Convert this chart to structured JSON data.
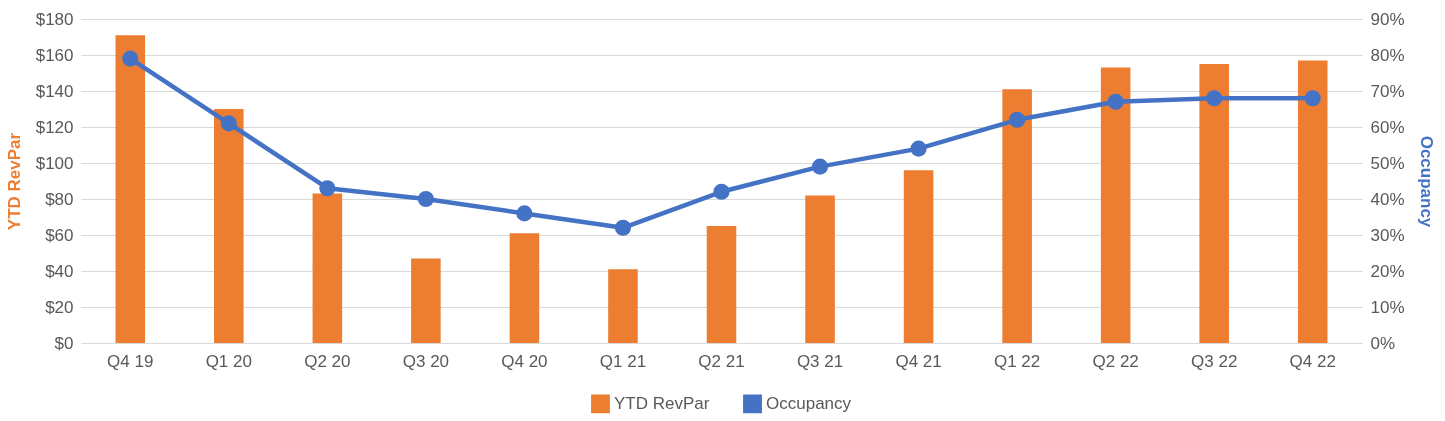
{
  "chart_data": {
    "type": "bar",
    "ylabel": "YTD RevPar",
    "y2label": "Occupancy",
    "categories": [
      "Q4 19",
      "Q1 20",
      "Q2 20",
      "Q3 20",
      "Q4 20",
      "Q1 21",
      "Q2 21",
      "Q3 21",
      "Q4 21",
      "Q1 22",
      "Q2 22",
      "Q3 22",
      "Q4 22"
    ],
    "series": [
      {
        "name": "YTD RevPar",
        "color": "#ed7d31",
        "values": [
          171,
          130,
          83,
          47,
          61,
          41,
          65,
          82,
          96,
          141,
          153,
          155,
          157
        ]
      },
      {
        "name": "Occupancy",
        "type": "line",
        "axis": "y2",
        "color": "#4472c4",
        "marker": "circle",
        "values": [
          79,
          61,
          43,
          40,
          36,
          32,
          42,
          49,
          54,
          62,
          67,
          68,
          68
        ]
      }
    ],
    "ylim": [
      0,
      180
    ],
    "yticks": [
      {
        "value": 0,
        "label": "$0"
      },
      {
        "value": 20,
        "label": "$20"
      },
      {
        "value": 40,
        "label": "$40"
      },
      {
        "value": 60,
        "label": "$60"
      },
      {
        "value": 80,
        "label": "$80"
      },
      {
        "value": 100,
        "label": "$100"
      },
      {
        "value": 120,
        "label": "$120"
      },
      {
        "value": 140,
        "label": "$140"
      },
      {
        "value": 160,
        "label": "$160"
      },
      {
        "value": 180,
        "label": "$180"
      }
    ],
    "y2lim": [
      0,
      90
    ],
    "y2ticks": [
      {
        "value": 0,
        "label": "0%"
      },
      {
        "value": 10,
        "label": "10%"
      },
      {
        "value": 20,
        "label": "20%"
      },
      {
        "value": 30,
        "label": "30%"
      },
      {
        "value": 40,
        "label": "40%"
      },
      {
        "value": 50,
        "label": "50%"
      },
      {
        "value": 60,
        "label": "60%"
      },
      {
        "value": 70,
        "label": "70%"
      },
      {
        "value": 80,
        "label": "80%"
      },
      {
        "value": 90,
        "label": "90%"
      }
    ],
    "grid": "y",
    "legend": "bottom"
  }
}
